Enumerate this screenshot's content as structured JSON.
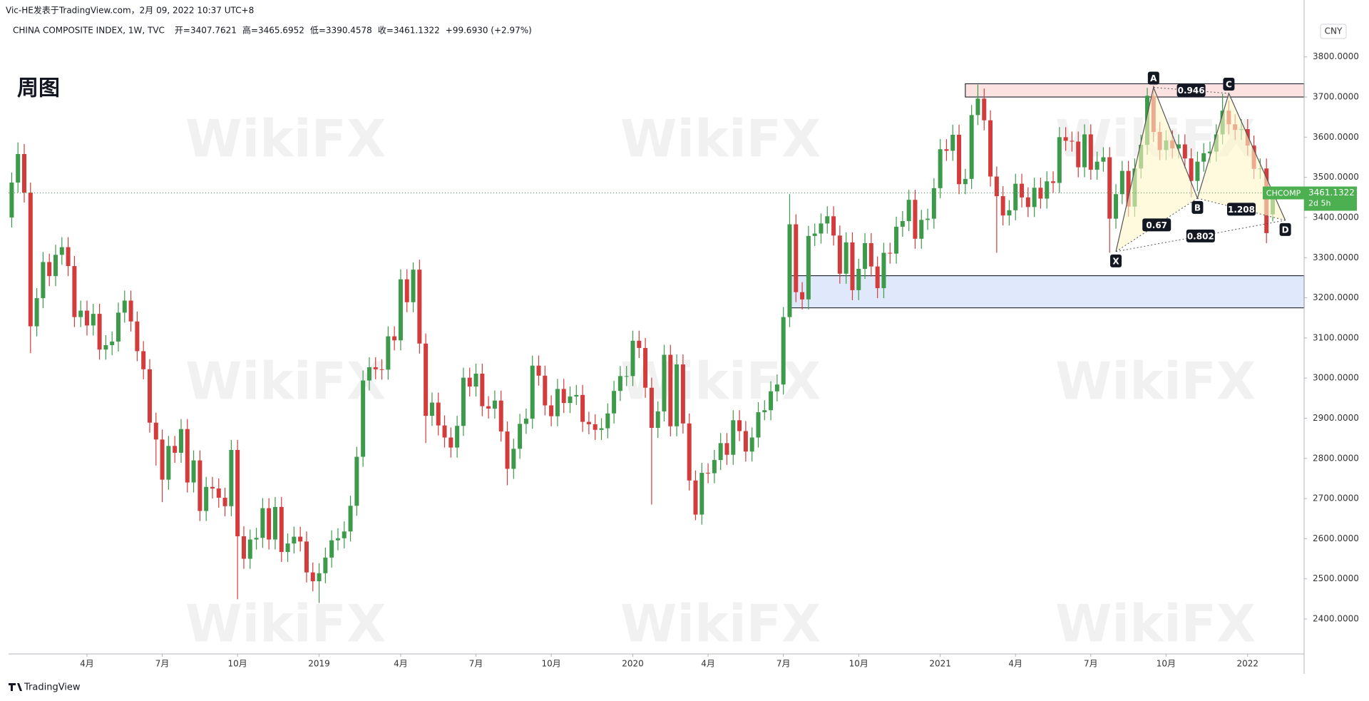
{
  "header": "Vic-HE发表于TradingView.com，2月 09, 2022 10:37 UTC+8",
  "footer": "TradingView",
  "chart_data": {
    "type": "candlestick",
    "title": "周图",
    "symbol": "CHINA COMPOSITE INDEX, 1W, TVC",
    "open_label": "开=",
    "high_label": "高=",
    "low_label": "低=",
    "close_label": "收=",
    "change": "+99.6930 (+2.97%)",
    "ticker": "CHCOMP",
    "countdown": "2d 5h",
    "currency": "CNY",
    "watermark": "WikiFX",
    "up_color": "#3d9a4b",
    "down_color": "#d23c3c",
    "ylim": [
      2313,
      3883
    ],
    "yticks": [
      {
        "value": 2400,
        "label": "2400.0000"
      },
      {
        "value": 2500,
        "label": "2500.0000"
      },
      {
        "value": 2600,
        "label": "2600.0000"
      },
      {
        "value": 2700,
        "label": "2700.0000"
      },
      {
        "value": 2800,
        "label": "2800.0000"
      },
      {
        "value": 2900,
        "label": "2900.0000"
      },
      {
        "value": 3000,
        "label": "3000.0000"
      },
      {
        "value": 3100,
        "label": "3100.0000"
      },
      {
        "value": 3200,
        "label": "3200.0000"
      },
      {
        "value": 3300,
        "label": "3300.0000"
      },
      {
        "value": 3400,
        "label": "3400.0000"
      },
      {
        "value": 3500,
        "label": "3500.0000"
      },
      {
        "value": 3600,
        "label": "3600.0000"
      },
      {
        "value": 3700,
        "label": "3700.0000"
      },
      {
        "value": 3800,
        "label": "3800.0000"
      }
    ],
    "xlim": [
      -0.5,
      206
    ],
    "xticks": [
      {
        "value": 12,
        "label": "4月"
      },
      {
        "value": 24,
        "label": "7月"
      },
      {
        "value": 36,
        "label": "10月"
      },
      {
        "value": 49,
        "label": "2019"
      },
      {
        "value": 62,
        "label": "4月"
      },
      {
        "value": 74,
        "label": "7月"
      },
      {
        "value": 86,
        "label": "10月"
      },
      {
        "value": 99,
        "label": "2020"
      },
      {
        "value": 111,
        "label": "4月"
      },
      {
        "value": 123,
        "label": "7月"
      },
      {
        "value": 135,
        "label": "10月"
      },
      {
        "value": 148,
        "label": "2021"
      },
      {
        "value": 160,
        "label": "4月"
      },
      {
        "value": 172,
        "label": "7月"
      },
      {
        "value": 184,
        "label": "10月"
      },
      {
        "value": 197,
        "label": "2022"
      }
    ],
    "ohlc": [
      [
        3400,
        3512,
        3375,
        3487
      ],
      [
        3487,
        3587,
        3462,
        3558
      ],
      [
        3558,
        3583,
        3437,
        3462
      ],
      [
        3462,
        3487,
        3062,
        3129
      ],
      [
        3129,
        3224,
        3104,
        3199
      ],
      [
        3199,
        3314,
        3174,
        3289
      ],
      [
        3289,
        3310,
        3229,
        3254
      ],
      [
        3254,
        3332,
        3229,
        3307
      ],
      [
        3307,
        3351,
        3282,
        3326
      ],
      [
        3326,
        3351,
        3254,
        3279
      ],
      [
        3279,
        3304,
        3127,
        3152
      ],
      [
        3152,
        3193,
        3127,
        3168
      ],
      [
        3168,
        3193,
        3106,
        3131
      ],
      [
        3131,
        3185,
        3106,
        3160
      ],
      [
        3160,
        3185,
        3046,
        3071
      ],
      [
        3071,
        3107,
        3046,
        3082
      ],
      [
        3082,
        3116,
        3057,
        3091
      ],
      [
        3091,
        3188,
        3066,
        3163
      ],
      [
        3163,
        3218,
        3138,
        3193
      ],
      [
        3193,
        3218,
        3116,
        3141
      ],
      [
        3141,
        3166,
        3042,
        3067
      ],
      [
        3067,
        3092,
        2997,
        3022
      ],
      [
        3022,
        3047,
        2864,
        2889
      ],
      [
        2889,
        2914,
        2782,
        2847
      ],
      [
        2847,
        2872,
        2691,
        2747
      ],
      [
        2747,
        2856,
        2722,
        2831
      ],
      [
        2831,
        2856,
        2789,
        2814
      ],
      [
        2814,
        2898,
        2789,
        2873
      ],
      [
        2873,
        2898,
        2715,
        2740
      ],
      [
        2740,
        2820,
        2715,
        2795
      ],
      [
        2795,
        2820,
        2644,
        2669
      ],
      [
        2669,
        2754,
        2644,
        2729
      ],
      [
        2729,
        2754,
        2700,
        2725
      ],
      [
        2725,
        2750,
        2677,
        2702
      ],
      [
        2702,
        2727,
        2656,
        2681
      ],
      [
        2681,
        2846,
        2656,
        2821
      ],
      [
        2821,
        2846,
        2449,
        2606
      ],
      [
        2606,
        2631,
        2525,
        2550
      ],
      [
        2550,
        2623,
        2525,
        2598
      ],
      [
        2598,
        2627,
        2573,
        2602
      ],
      [
        2602,
        2701,
        2577,
        2676
      ],
      [
        2676,
        2701,
        2573,
        2598
      ],
      [
        2598,
        2704,
        2573,
        2679
      ],
      [
        2679,
        2704,
        2542,
        2567
      ],
      [
        2567,
        2613,
        2542,
        2588
      ],
      [
        2588,
        2630,
        2563,
        2605
      ],
      [
        2605,
        2630,
        2568,
        2593
      ],
      [
        2593,
        2618,
        2491,
        2516
      ],
      [
        2516,
        2541,
        2469,
        2494
      ],
      [
        2494,
        2539,
        2440,
        2514
      ],
      [
        2514,
        2578,
        2489,
        2553
      ],
      [
        2553,
        2621,
        2528,
        2596
      ],
      [
        2596,
        2626,
        2571,
        2601
      ],
      [
        2601,
        2643,
        2576,
        2618
      ],
      [
        2618,
        2707,
        2593,
        2682
      ],
      [
        2682,
        2829,
        2657,
        2804
      ],
      [
        2804,
        3019,
        2779,
        2994
      ],
      [
        2994,
        3052,
        2969,
        3027
      ],
      [
        3027,
        3052,
        2997,
        3022
      ],
      [
        3022,
        3047,
        2996,
        3021
      ],
      [
        3021,
        3129,
        2996,
        3104
      ],
      [
        3104,
        3129,
        3069,
        3094
      ],
      [
        3094,
        3271,
        3069,
        3246
      ],
      [
        3246,
        3271,
        3164,
        3189
      ],
      [
        3189,
        3288,
        3164,
        3270
      ],
      [
        3270,
        3295,
        3061,
        3086
      ],
      [
        3086,
        3111,
        2838,
        2906
      ],
      [
        2906,
        2964,
        2881,
        2939
      ],
      [
        2939,
        2964,
        2857,
        2882
      ],
      [
        2882,
        2907,
        2827,
        2852
      ],
      [
        2852,
        2877,
        2802,
        2827
      ],
      [
        2827,
        2906,
        2802,
        2881
      ],
      [
        2881,
        3026,
        2856,
        3001
      ],
      [
        3001,
        3026,
        2954,
        2979
      ],
      [
        2979,
        3036,
        2954,
        3011
      ],
      [
        3011,
        3036,
        2905,
        2930
      ],
      [
        2930,
        2955,
        2899,
        2924
      ],
      [
        2924,
        2969,
        2899,
        2944
      ],
      [
        2944,
        2969,
        2842,
        2867
      ],
      [
        2867,
        2892,
        2733,
        2774
      ],
      [
        2774,
        2849,
        2749,
        2824
      ],
      [
        2824,
        2911,
        2799,
        2886
      ],
      [
        2886,
        2924,
        2861,
        2899
      ],
      [
        2899,
        3056,
        2874,
        3031
      ],
      [
        3031,
        3056,
        2981,
        3006
      ],
      [
        3006,
        3031,
        2907,
        2932
      ],
      [
        2932,
        2957,
        2880,
        2905
      ],
      [
        2905,
        2998,
        2880,
        2973
      ],
      [
        2973,
        2998,
        2913,
        2938
      ],
      [
        2938,
        2979,
        2913,
        2954
      ],
      [
        2954,
        2983,
        2933,
        2958
      ],
      [
        2958,
        2983,
        2866,
        2891
      ],
      [
        2891,
        2916,
        2860,
        2885
      ],
      [
        2885,
        2910,
        2846,
        2871
      ],
      [
        2871,
        2900,
        2846,
        2875
      ],
      [
        2875,
        2937,
        2850,
        2912
      ],
      [
        2912,
        2993,
        2887,
        2968
      ],
      [
        2968,
        3030,
        2943,
        3005
      ],
      [
        3005,
        3030,
        2980,
        3005
      ],
      [
        3005,
        3118,
        2980,
        3093
      ],
      [
        3093,
        3118,
        3050,
        3075
      ],
      [
        3075,
        3100,
        2951,
        2976
      ],
      [
        2976,
        3001,
        2685,
        2876
      ],
      [
        2876,
        2942,
        2851,
        2917
      ],
      [
        2917,
        3083,
        2892,
        3058
      ],
      [
        3058,
        3083,
        2855,
        2880
      ],
      [
        2880,
        3059,
        2855,
        3034
      ],
      [
        3034,
        3059,
        2862,
        2887
      ],
      [
        2887,
        2912,
        2720,
        2745
      ],
      [
        2745,
        2770,
        2646,
        2660
      ],
      [
        2660,
        2789,
        2635,
        2764
      ],
      [
        2764,
        2788,
        2738,
        2763
      ],
      [
        2763,
        2821,
        2738,
        2796
      ],
      [
        2796,
        2863,
        2771,
        2838
      ],
      [
        2838,
        2863,
        2784,
        2809
      ],
      [
        2809,
        2920,
        2784,
        2895
      ],
      [
        2895,
        2920,
        2843,
        2868
      ],
      [
        2868,
        2893,
        2792,
        2817
      ],
      [
        2817,
        2877,
        2792,
        2852
      ],
      [
        2852,
        2940,
        2827,
        2915
      ],
      [
        2915,
        2945,
        2895,
        2920
      ],
      [
        2920,
        2992,
        2895,
        2967
      ],
      [
        2967,
        3009,
        2942,
        2984
      ],
      [
        2984,
        3177,
        2959,
        3152
      ],
      [
        3152,
        3458,
        3127,
        3383
      ],
      [
        3383,
        3408,
        3189,
        3214
      ],
      [
        3214,
        3239,
        3171,
        3196
      ],
      [
        3196,
        3379,
        3171,
        3354
      ],
      [
        3354,
        3385,
        3329,
        3360
      ],
      [
        3360,
        3410,
        3335,
        3385
      ],
      [
        3385,
        3428,
        3360,
        3403
      ],
      [
        3403,
        3428,
        3330,
        3355
      ],
      [
        3355,
        3380,
        3235,
        3260
      ],
      [
        3260,
        3363,
        3235,
        3338
      ],
      [
        3338,
        3363,
        3194,
        3219
      ],
      [
        3219,
        3297,
        3194,
        3272
      ],
      [
        3272,
        3361,
        3247,
        3336
      ],
      [
        3336,
        3361,
        3253,
        3278
      ],
      [
        3278,
        3303,
        3199,
        3224
      ],
      [
        3224,
        3337,
        3199,
        3312
      ],
      [
        3312,
        3337,
        3285,
        3310
      ],
      [
        3310,
        3402,
        3285,
        3377
      ],
      [
        3377,
        3416,
        3352,
        3391
      ],
      [
        3391,
        3469,
        3366,
        3444
      ],
      [
        3444,
        3469,
        3322,
        3347
      ],
      [
        3347,
        3419,
        3322,
        3394
      ],
      [
        3394,
        3422,
        3369,
        3397
      ],
      [
        3397,
        3498,
        3372,
        3473
      ],
      [
        3473,
        3595,
        3448,
        3570
      ],
      [
        3570,
        3595,
        3541,
        3566
      ],
      [
        3566,
        3631,
        3541,
        3606
      ],
      [
        3606,
        3631,
        3458,
        3483
      ],
      [
        3483,
        3521,
        3458,
        3496
      ],
      [
        3496,
        3680,
        3471,
        3655
      ],
      [
        3655,
        3731,
        3630,
        3696
      ],
      [
        3696,
        3721,
        3617,
        3642
      ],
      [
        3642,
        3667,
        3477,
        3502
      ],
      [
        3502,
        3527,
        3312,
        3453
      ],
      [
        3453,
        3478,
        3380,
        3405
      ],
      [
        3405,
        3443,
        3380,
        3418
      ],
      [
        3418,
        3509,
        3393,
        3484
      ],
      [
        3484,
        3509,
        3425,
        3450
      ],
      [
        3450,
        3475,
        3401,
        3426
      ],
      [
        3426,
        3499,
        3401,
        3474
      ],
      [
        3474,
        3499,
        3422,
        3447
      ],
      [
        3447,
        3515,
        3422,
        3490
      ],
      [
        3490,
        3515,
        3461,
        3486
      ],
      [
        3486,
        3625,
        3461,
        3600
      ],
      [
        3600,
        3625,
        3566,
        3591
      ],
      [
        3591,
        3614,
        3564,
        3589
      ],
      [
        3589,
        3614,
        3500,
        3525
      ],
      [
        3525,
        3632,
        3500,
        3607
      ],
      [
        3607,
        3632,
        3494,
        3519
      ],
      [
        3519,
        3564,
        3494,
        3539
      ],
      [
        3539,
        3575,
        3514,
        3550
      ],
      [
        3550,
        3575,
        3312,
        3397
      ],
      [
        3397,
        3483,
        3372,
        3458
      ],
      [
        3458,
        3541,
        3433,
        3516
      ],
      [
        3516,
        3541,
        3402,
        3427
      ],
      [
        3427,
        3547,
        3402,
        3522
      ],
      [
        3522,
        3606,
        3497,
        3581
      ],
      [
        3581,
        3723,
        3556,
        3703
      ],
      [
        3703,
        3728,
        3588,
        3613
      ],
      [
        3613,
        3638,
        3543,
        3568
      ],
      [
        3568,
        3617,
        3543,
        3592
      ],
      [
        3592,
        3617,
        3547,
        3572
      ],
      [
        3572,
        3607,
        3547,
        3582
      ],
      [
        3582,
        3607,
        3522,
        3547
      ],
      [
        3547,
        3572,
        3450,
        3491
      ],
      [
        3491,
        3564,
        3466,
        3539
      ],
      [
        3539,
        3585,
        3514,
        3560
      ],
      [
        3560,
        3589,
        3535,
        3564
      ],
      [
        3564,
        3632,
        3539,
        3607
      ],
      [
        3607,
        3708,
        3582,
        3666
      ],
      [
        3666,
        3691,
        3607,
        3632
      ],
      [
        3632,
        3657,
        3593,
        3618
      ],
      [
        3618,
        3645,
        3593,
        3620
      ],
      [
        3620,
        3645,
        3554,
        3579
      ],
      [
        3579,
        3604,
        3496,
        3521
      ],
      [
        3521,
        3547,
        3496,
        3522
      ],
      [
        3522,
        3547,
        3336,
        3361
      ],
      [
        3407.7621,
        3465.6952,
        3390.4578,
        3461.1322
      ]
    ],
    "zones": [
      {
        "from": 3700,
        "to": 3733,
        "start": 152,
        "color": "#fde2e2"
      },
      {
        "from": 3175,
        "to": 3255,
        "start": 124,
        "color": "#dfe9fb"
      }
    ],
    "pattern": {
      "points": [
        {
          "label": "X",
          "x": 176,
          "price": 3315
        },
        {
          "label": "A",
          "x": 182,
          "price": 3724
        },
        {
          "label": "B",
          "x": 189,
          "price": 3448
        },
        {
          "label": "C",
          "x": 194,
          "price": 3709
        },
        {
          "label": "D",
          "x": 203,
          "price": 3393
        }
      ],
      "ratios": [
        0.67,
        0.946,
        1.208,
        0.802
      ]
    }
  }
}
